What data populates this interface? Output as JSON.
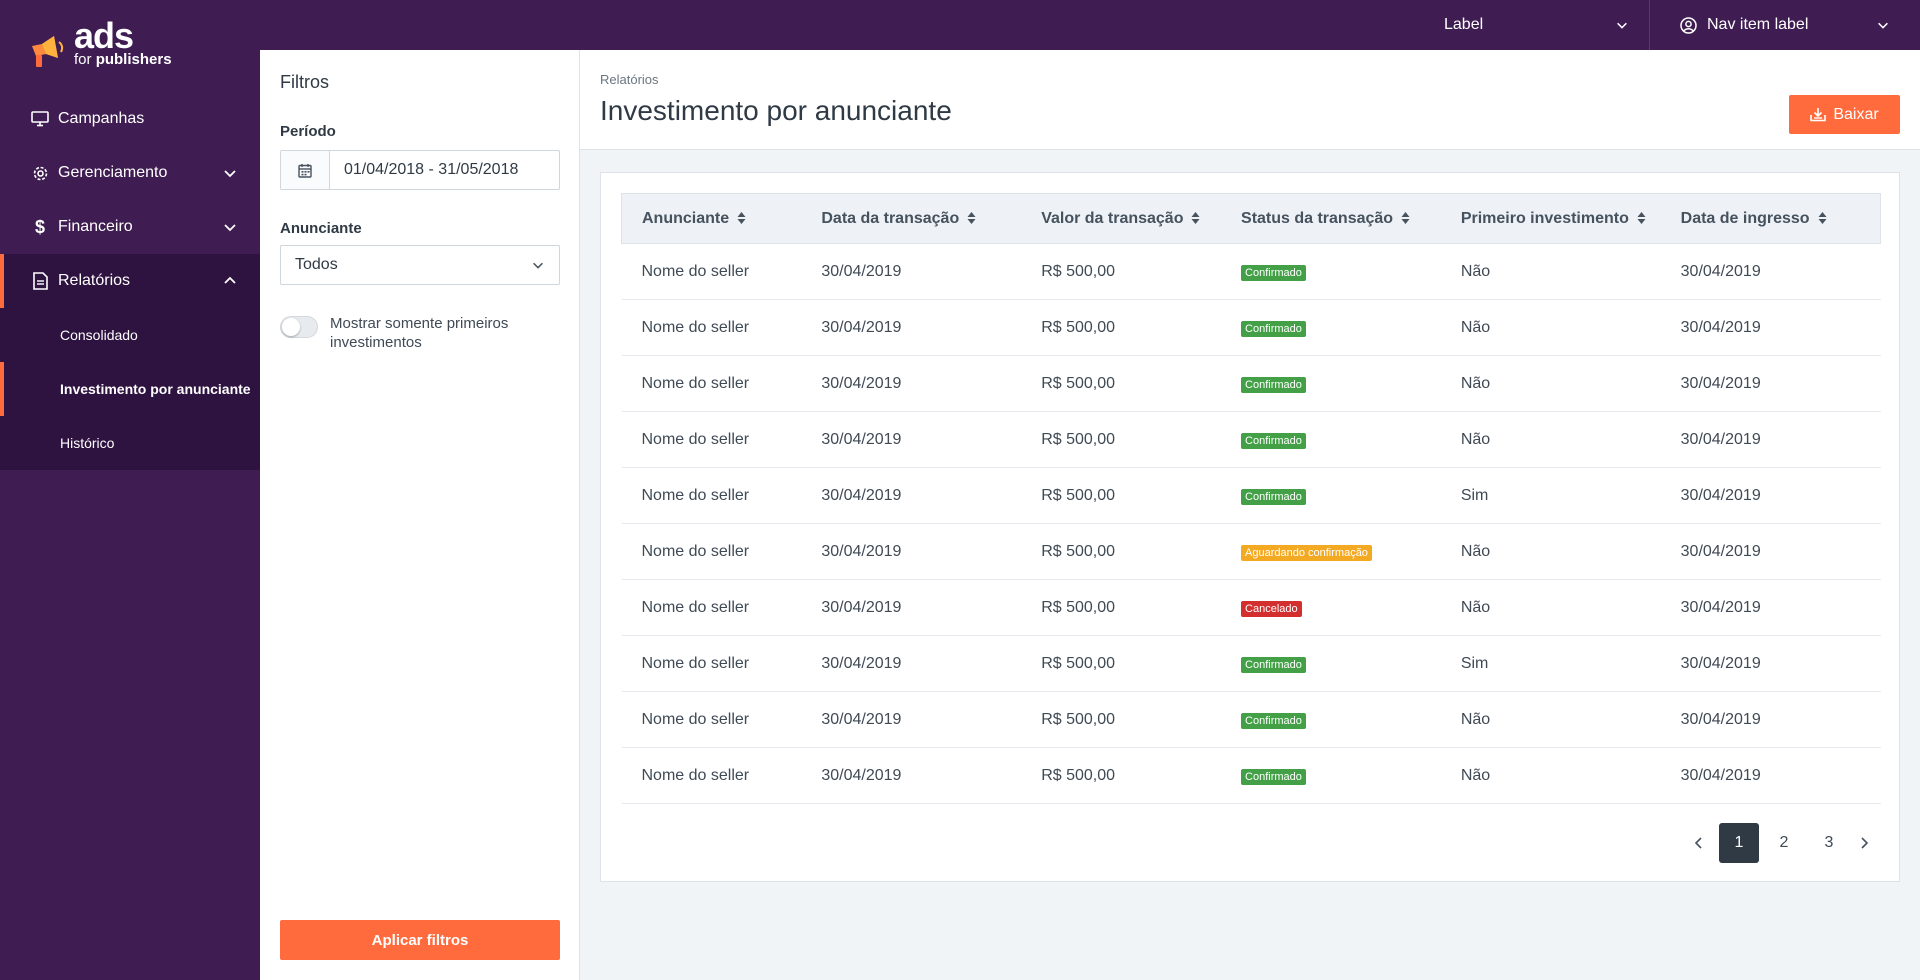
{
  "brand": {
    "name": "ads",
    "sub_light": "for",
    "sub_bold": "publishers",
    "accent": "#ff6b3d",
    "sidebar_bg": "#3f1c52"
  },
  "sidebar": {
    "items": [
      {
        "label": "Campanhas",
        "icon": "monitor-icon"
      },
      {
        "label": "Gerenciamento",
        "icon": "gear-icon"
      },
      {
        "label": "Financeiro",
        "icon": "dollar-icon"
      },
      {
        "label": "Relatórios",
        "icon": "document-icon"
      }
    ],
    "subitems": [
      {
        "label": "Consolidado"
      },
      {
        "label": "Investimento por anunciante"
      },
      {
        "label": "Histórico"
      }
    ]
  },
  "topbar": {
    "label": "Label",
    "nav_item": "Nav item label"
  },
  "filters": {
    "title": "Filtros",
    "period_label": "Período",
    "period_value": "01/04/2018 - 31/05/2018",
    "advertiser_label": "Anunciante",
    "advertiser_value": "Todos",
    "toggle_label": "Mostrar somente primeiros investimentos",
    "apply_label": "Aplicar filtros"
  },
  "header": {
    "breadcrumb": "Relatórios",
    "title": "Investimento por anunciante",
    "download_label": "Baixar"
  },
  "table": {
    "columns": [
      "Anunciante",
      "Data da transação",
      "Valor da transação",
      "Status da transação",
      "Primeiro investimento",
      "Data de ingresso"
    ],
    "rows": [
      {
        "advertiser": "Nome do seller",
        "date": "30/04/2019",
        "value": "R$ 500,00",
        "status": "Confirmado",
        "status_type": "ok",
        "first": "Não",
        "joined": "30/04/2019"
      },
      {
        "advertiser": "Nome do seller",
        "date": "30/04/2019",
        "value": "R$ 500,00",
        "status": "Confirmado",
        "status_type": "ok",
        "first": "Não",
        "joined": "30/04/2019"
      },
      {
        "advertiser": "Nome do seller",
        "date": "30/04/2019",
        "value": "R$ 500,00",
        "status": "Confirmado",
        "status_type": "ok",
        "first": "Não",
        "joined": "30/04/2019"
      },
      {
        "advertiser": "Nome do seller",
        "date": "30/04/2019",
        "value": "R$ 500,00",
        "status": "Confirmado",
        "status_type": "ok",
        "first": "Não",
        "joined": "30/04/2019"
      },
      {
        "advertiser": "Nome do seller",
        "date": "30/04/2019",
        "value": "R$ 500,00",
        "status": "Confirmado",
        "status_type": "ok",
        "first": "Sim",
        "joined": "30/04/2019"
      },
      {
        "advertiser": "Nome do seller",
        "date": "30/04/2019",
        "value": "R$ 500,00",
        "status": "Aguardando confirmação",
        "status_type": "wait",
        "first": "Não",
        "joined": "30/04/2019"
      },
      {
        "advertiser": "Nome do seller",
        "date": "30/04/2019",
        "value": "R$ 500,00",
        "status": "Cancelado",
        "status_type": "cancel",
        "first": "Não",
        "joined": "30/04/2019"
      },
      {
        "advertiser": "Nome do seller",
        "date": "30/04/2019",
        "value": "R$ 500,00",
        "status": "Confirmado",
        "status_type": "ok",
        "first": "Sim",
        "joined": "30/04/2019"
      },
      {
        "advertiser": "Nome do seller",
        "date": "30/04/2019",
        "value": "R$ 500,00",
        "status": "Confirmado",
        "status_type": "ok",
        "first": "Não",
        "joined": "30/04/2019"
      },
      {
        "advertiser": "Nome do seller",
        "date": "30/04/2019",
        "value": "R$ 500,00",
        "status": "Confirmado",
        "status_type": "ok",
        "first": "Não",
        "joined": "30/04/2019"
      }
    ]
  },
  "pagination": {
    "pages": [
      "1",
      "2",
      "3"
    ],
    "current": "1"
  }
}
